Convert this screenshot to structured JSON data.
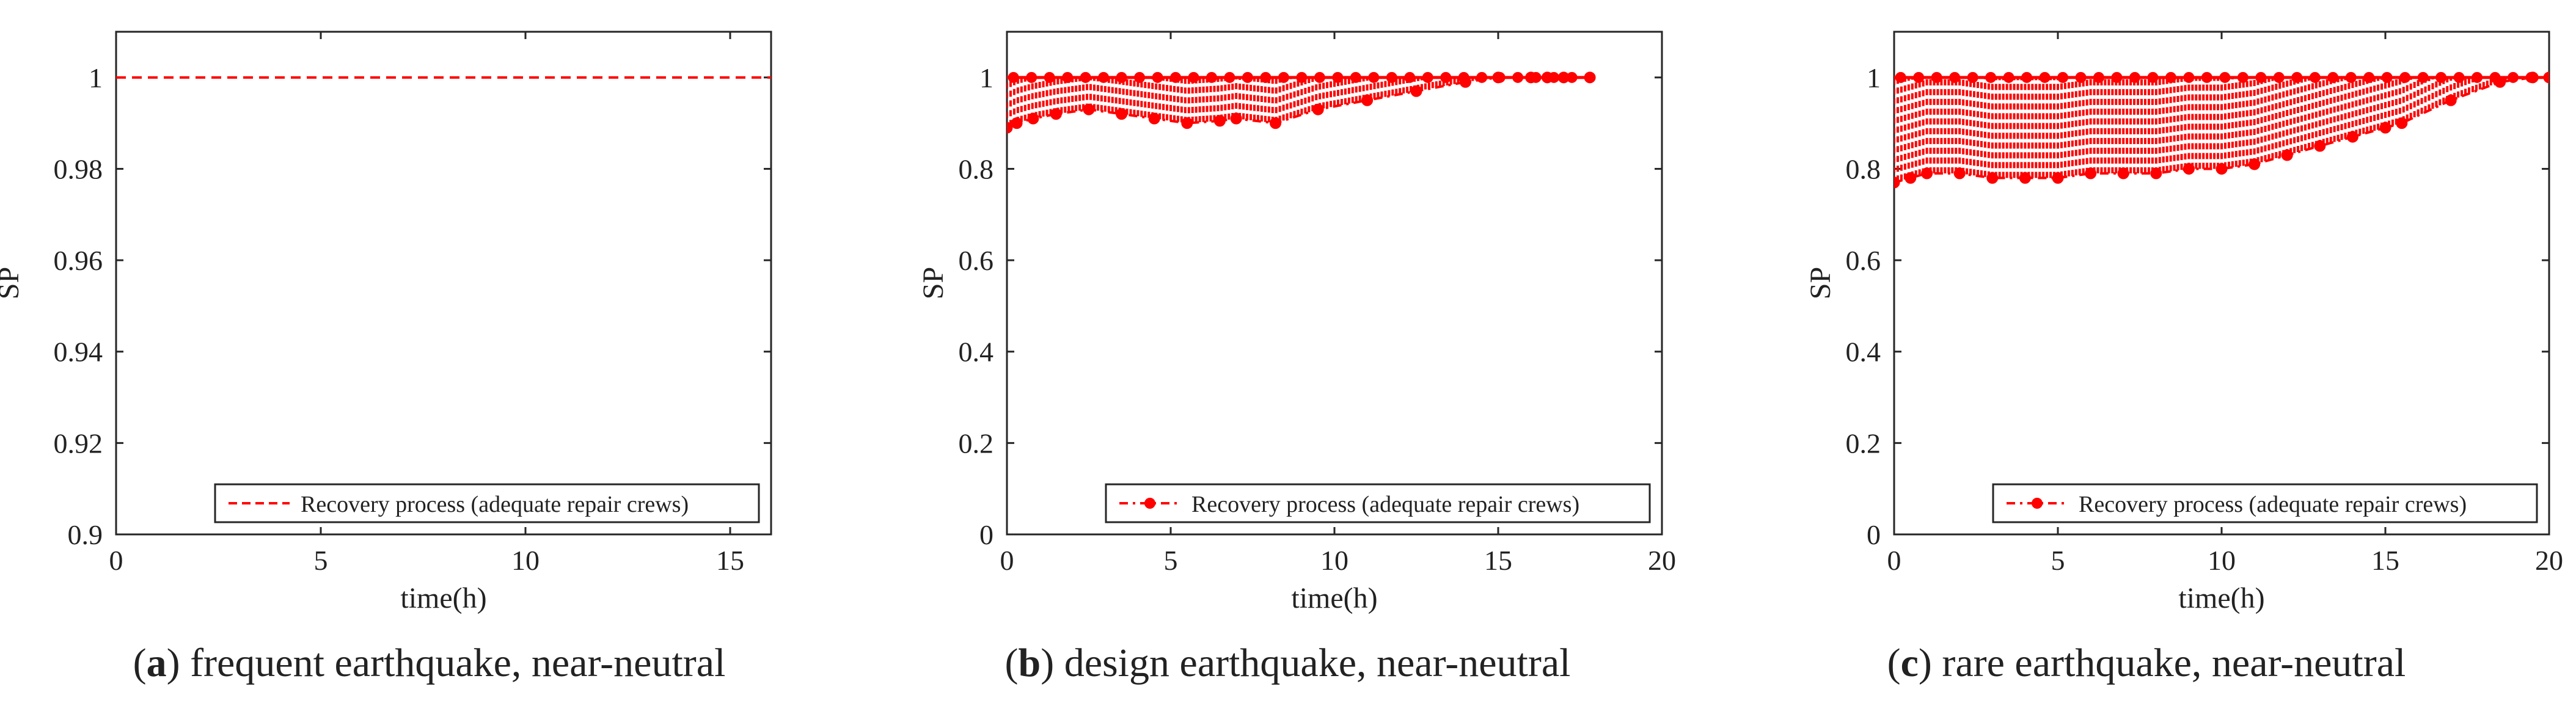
{
  "chart_data": [
    {
      "type": "line",
      "xlabel": "time(h)",
      "ylabel": "SP",
      "xlim": [
        0,
        16
      ],
      "ylim": [
        0.9,
        1.01
      ],
      "xticks": [
        0,
        5,
        10,
        15
      ],
      "yticks": [
        0.9,
        0.92,
        0.94,
        0.96,
        0.98,
        1
      ],
      "ytick_labels": [
        "0.9",
        "0.92",
        "0.94",
        "0.96",
        "0.98",
        "1"
      ],
      "grid": false,
      "legend_position": "bottom-right",
      "legend": "Recovery process (adequate repair crews)",
      "series": [
        {
          "name": "Recovery process (adequate repair crews)",
          "style": "dashed",
          "markers": false,
          "x": [
            0,
            16
          ],
          "y": [
            1,
            1
          ]
        }
      ],
      "caption": {
        "letter": "a",
        "text": " frequent earthquake, near-neutral"
      }
    },
    {
      "type": "line",
      "xlabel": "time(h)",
      "ylabel": "SP",
      "xlim": [
        0,
        20
      ],
      "ylim": [
        0,
        1.1
      ],
      "xticks": [
        0,
        5,
        10,
        15,
        20
      ],
      "yticks": [
        0,
        0.2,
        0.4,
        0.6,
        0.8,
        1
      ],
      "ytick_labels": [
        "0",
        "0.2",
        "0.4",
        "0.6",
        "0.8",
        "1"
      ],
      "grid": false,
      "legend_position": "bottom-right",
      "legend": "Recovery process (adequate repair crews)",
      "series": [
        {
          "name": "Recovery process (adequate repair crews)",
          "style": "dash-dot",
          "markers": true,
          "x": [
            0,
            0.3,
            0.8,
            1.5,
            2.5,
            3.5,
            4.5,
            5.5,
            6.5,
            7.0,
            8.2,
            9.5,
            11.0,
            12.5,
            14.0,
            15.0,
            16.0,
            16.5,
            17.0,
            17.8
          ],
          "y": [
            0.89,
            0.9,
            0.91,
            0.92,
            0.93,
            0.92,
            0.91,
            0.9,
            0.905,
            0.91,
            0.9,
            0.93,
            0.95,
            0.97,
            0.99,
            1,
            1,
            1,
            1,
            1
          ]
        }
      ],
      "caption": {
        "letter": "b",
        "text": " design earthquake, near-neutral"
      }
    },
    {
      "type": "line",
      "xlabel": "time(h)",
      "ylabel": "SP",
      "xlim": [
        0,
        20
      ],
      "ylim": [
        0,
        1.1
      ],
      "xticks": [
        0,
        5,
        10,
        15,
        20
      ],
      "yticks": [
        0,
        0.2,
        0.4,
        0.6,
        0.8,
        1
      ],
      "ytick_labels": [
        "0",
        "0.2",
        "0.4",
        "0.6",
        "0.8",
        "1"
      ],
      "grid": false,
      "legend_position": "bottom-right",
      "legend": "Recovery process (adequate repair crews)",
      "series": [
        {
          "name": "Recovery process (adequate repair crews)",
          "style": "dash-dot",
          "markers": true,
          "x": [
            0,
            0.5,
            1.0,
            2.0,
            3.0,
            4.0,
            5.0,
            6.0,
            7.0,
            8.0,
            9.0,
            10.0,
            11.0,
            12.0,
            13.0,
            14.0,
            15.0,
            15.5,
            17.0,
            18.5,
            19.5,
            20.0
          ],
          "y": [
            0.77,
            0.78,
            0.79,
            0.79,
            0.78,
            0.78,
            0.78,
            0.79,
            0.79,
            0.79,
            0.8,
            0.8,
            0.81,
            0.83,
            0.85,
            0.87,
            0.89,
            0.9,
            0.95,
            0.99,
            1,
            1
          ]
        }
      ],
      "caption": {
        "letter": "c",
        "text": " rare earthquake, near-neutral"
      }
    }
  ]
}
